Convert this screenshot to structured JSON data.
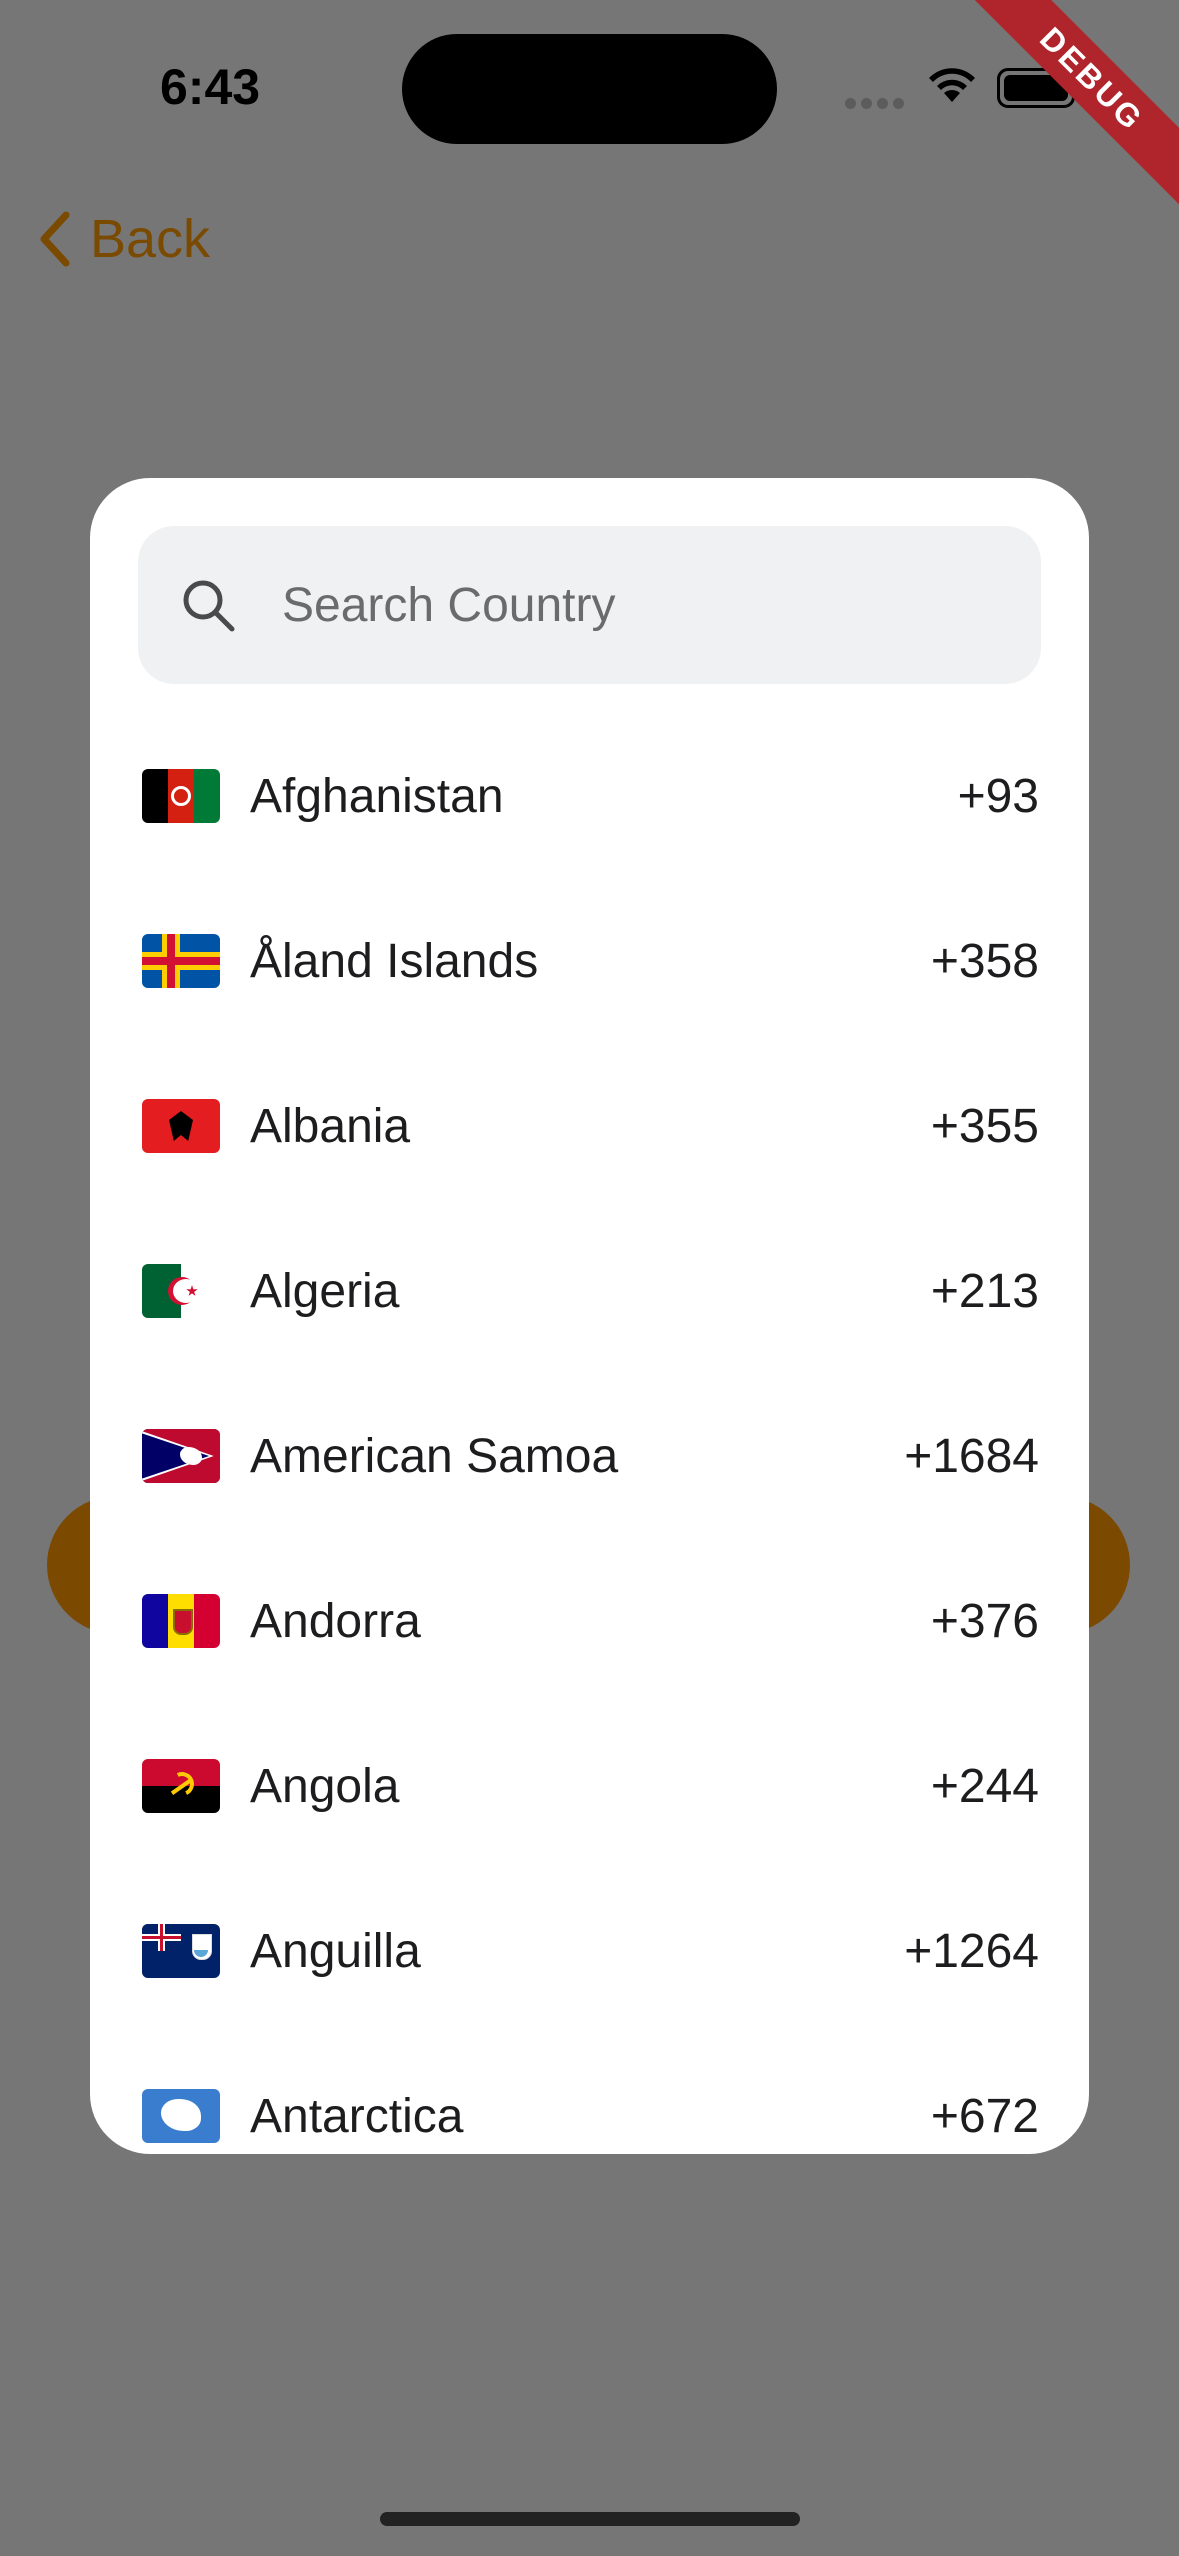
{
  "status": {
    "time": "6:43",
    "icons": [
      "signal-icon",
      "wifi-icon",
      "battery-icon"
    ]
  },
  "debug_banner": "DEBUG",
  "nav": {
    "back_label": "Back"
  },
  "search": {
    "placeholder": "Search Country"
  },
  "countries": [
    {
      "name": "Afghanistan",
      "code": "+93",
      "flag": "af"
    },
    {
      "name": "Åland Islands",
      "code": "+358",
      "flag": "ax"
    },
    {
      "name": "Albania",
      "code": "+355",
      "flag": "al"
    },
    {
      "name": "Algeria",
      "code": "+213",
      "flag": "dz"
    },
    {
      "name": "American Samoa",
      "code": "+1684",
      "flag": "as"
    },
    {
      "name": "Andorra",
      "code": "+376",
      "flag": "ad"
    },
    {
      "name": "Angola",
      "code": "+244",
      "flag": "ao"
    },
    {
      "name": "Anguilla",
      "code": "+1264",
      "flag": "ai"
    },
    {
      "name": "Antarctica",
      "code": "+672",
      "flag": "aq"
    }
  ],
  "colors": {
    "accent": "#7b4a00",
    "overlay": "#767676",
    "debug": "#b0242b"
  }
}
